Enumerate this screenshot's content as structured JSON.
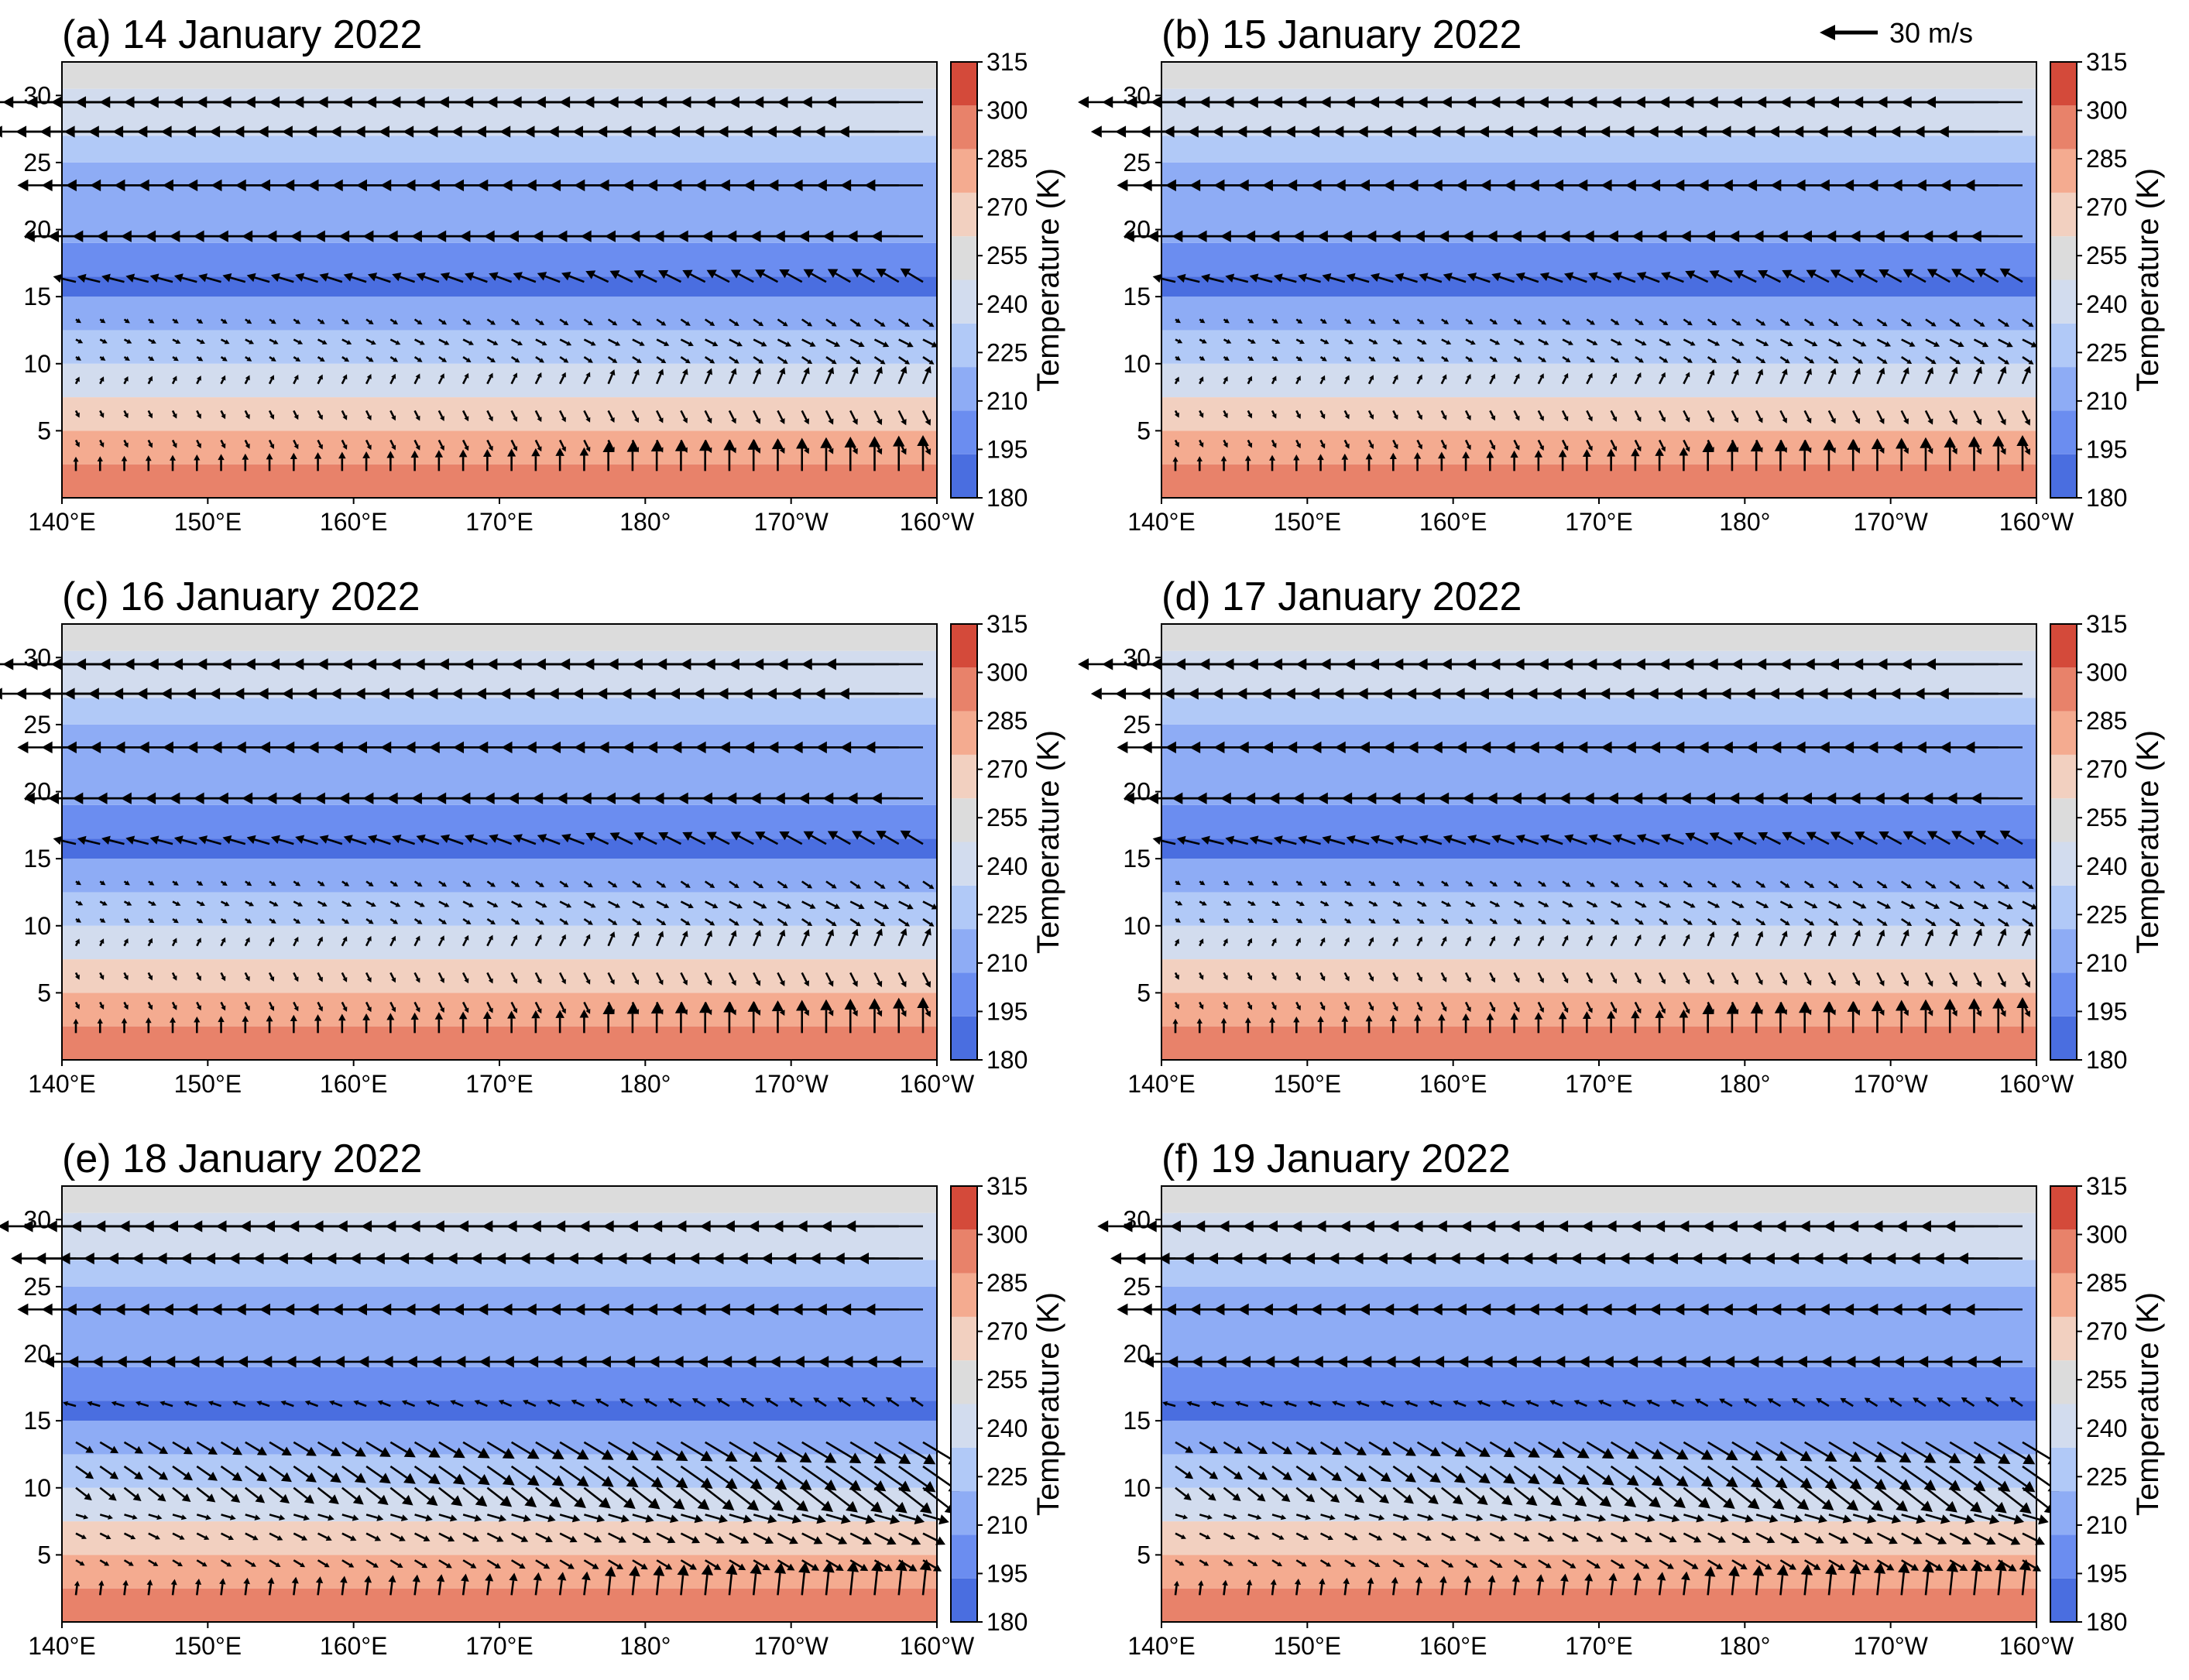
{
  "figure": {
    "reference_vector": {
      "label": "30 m/s",
      "speed": 30,
      "direction": "westward"
    }
  },
  "colors": {
    "levels": [
      180,
      195,
      210,
      225,
      240,
      255,
      270,
      285,
      300,
      315
    ],
    "bands": [
      "#4a6ee0",
      "#6b8df0",
      "#8eacf5",
      "#b1c9f7",
      "#d2dcee",
      "#dcdcdc",
      "#f2d0c0",
      "#f4ab90",
      "#e8826a",
      "#d44a3a"
    ],
    "arrow": "#000000",
    "frame": "#000000"
  },
  "chart_data": [
    {
      "type": "contourf+quiver",
      "title": "(a) 14 January 2022",
      "x_ticks": [
        "140°E",
        "150°E",
        "160°E",
        "170°E",
        "180°",
        "170°W",
        "160°W"
      ],
      "y_ticks": [
        "5",
        "10",
        "15",
        "20",
        "25",
        "30"
      ],
      "xlim": [
        "140°E",
        "160°W"
      ],
      "ylim": [
        0,
        32.5
      ],
      "colorbar": {
        "label": "Temperature (K)",
        "ticks": [
          "315",
          "300",
          "285",
          "270",
          "255",
          "240",
          "225",
          "210",
          "195",
          "180"
        ],
        "range": [
          180,
          315
        ]
      },
      "temperature_K": [
        {
          "z_range": [
            0,
            2.5
          ],
          "T": 300
        },
        {
          "z_range": [
            2.5,
            5
          ],
          "T": 288
        },
        {
          "z_range": [
            5,
            7.5
          ],
          "T": 275
        },
        {
          "z_range": [
            7.5,
            10
          ],
          "T": 248
        },
        {
          "z_range": [
            10,
            12.5
          ],
          "T": 232
        },
        {
          "z_range": [
            12.5,
            15
          ],
          "T": 218
        },
        {
          "z_range": [
            15,
            16.5
          ],
          "T": 190
        },
        {
          "z_range": [
            16.5,
            19
          ],
          "T": 205
        },
        {
          "z_range": [
            19,
            25
          ],
          "T": 215
        },
        {
          "z_range": [
            25,
            27
          ],
          "T": 230
        },
        {
          "z_range": [
            27,
            30.5
          ],
          "T": 248
        },
        {
          "z_range": [
            30.5,
            32.5
          ],
          "T": 265
        }
      ],
      "wind_rows_km": [
        {
          "z": 29.5,
          "u": -30,
          "w": 0
        },
        {
          "z": 27.3,
          "u": -26,
          "w": 0
        },
        {
          "z": 23.3,
          "u": -18,
          "w": 0
        },
        {
          "z": 19.5,
          "u": -16,
          "w": 0
        },
        {
          "z": 16.1,
          "u": -7,
          "w": 3
        },
        {
          "z": 13.3,
          "u": 3,
          "w": -2
        },
        {
          "z": 11.8,
          "u": 4,
          "w": -2
        },
        {
          "z": 10.5,
          "u": 3,
          "w": -2
        },
        {
          "z": 8.5,
          "u": 2,
          "w": 4
        },
        {
          "z": 6.5,
          "u": 2,
          "w": -4
        },
        {
          "z": 4.3,
          "u": 2,
          "w": -4
        },
        {
          "z": 2.0,
          "u": 0,
          "w": 8
        }
      ]
    },
    {
      "type": "contourf+quiver",
      "title": "(b) 15 January 2022",
      "x_ticks": [
        "140°E",
        "150°E",
        "160°E",
        "170°E",
        "180°",
        "170°W",
        "160°W"
      ],
      "y_ticks": [
        "5",
        "10",
        "15",
        "20",
        "25",
        "30"
      ],
      "xlim": [
        "140°E",
        "160°W"
      ],
      "ylim": [
        0,
        32.5
      ],
      "colorbar": {
        "label": "Temperature (K)",
        "ticks": [
          "315",
          "300",
          "285",
          "270",
          "255",
          "240",
          "225",
          "210",
          "195",
          "180"
        ],
        "range": [
          180,
          315
        ]
      },
      "temperature_K": [
        {
          "z_range": [
            0,
            2.5
          ],
          "T": 300
        },
        {
          "z_range": [
            2.5,
            5
          ],
          "T": 288
        },
        {
          "z_range": [
            5,
            7.5
          ],
          "T": 275
        },
        {
          "z_range": [
            7.5,
            10
          ],
          "T": 248
        },
        {
          "z_range": [
            10,
            12.5
          ],
          "T": 232
        },
        {
          "z_range": [
            12.5,
            15
          ],
          "T": 218
        },
        {
          "z_range": [
            15,
            16.5
          ],
          "T": 190
        },
        {
          "z_range": [
            16.5,
            19
          ],
          "T": 205
        },
        {
          "z_range": [
            19,
            25
          ],
          "T": 215
        },
        {
          "z_range": [
            25,
            27
          ],
          "T": 230
        },
        {
          "z_range": [
            27,
            30.5
          ],
          "T": 248
        },
        {
          "z_range": [
            30.5,
            32.5
          ],
          "T": 265
        }
      ],
      "wind_rows_km": [
        {
          "z": 29.5,
          "u": -30,
          "w": 0
        },
        {
          "z": 27.3,
          "u": -26,
          "w": 0
        },
        {
          "z": 23.3,
          "u": -18,
          "w": 0
        },
        {
          "z": 19.5,
          "u": -16,
          "w": 0
        },
        {
          "z": 16.1,
          "u": -7,
          "w": 3
        },
        {
          "z": 13.3,
          "u": 3,
          "w": -2
        },
        {
          "z": 11.8,
          "u": 4,
          "w": -2
        },
        {
          "z": 10.5,
          "u": 3,
          "w": -2
        },
        {
          "z": 8.5,
          "u": 2,
          "w": 4
        },
        {
          "z": 6.5,
          "u": 2,
          "w": -4
        },
        {
          "z": 4.3,
          "u": 2,
          "w": -4
        },
        {
          "z": 2.0,
          "u": 0,
          "w": 8
        }
      ]
    },
    {
      "type": "contourf+quiver",
      "title": "(c) 16 January 2022",
      "x_ticks": [
        "140°E",
        "150°E",
        "160°E",
        "170°E",
        "180°",
        "170°W",
        "160°W"
      ],
      "y_ticks": [
        "5",
        "10",
        "15",
        "20",
        "25",
        "30"
      ],
      "xlim": [
        "140°E",
        "160°W"
      ],
      "ylim": [
        0,
        32.5
      ],
      "colorbar": {
        "label": "Temperature (K)",
        "ticks": [
          "315",
          "300",
          "285",
          "270",
          "255",
          "240",
          "225",
          "210",
          "195",
          "180"
        ],
        "range": [
          180,
          315
        ]
      },
      "temperature_K": [
        {
          "z_range": [
            0,
            2.5
          ],
          "T": 300
        },
        {
          "z_range": [
            2.5,
            5
          ],
          "T": 288
        },
        {
          "z_range": [
            5,
            7.5
          ],
          "T": 275
        },
        {
          "z_range": [
            7.5,
            10
          ],
          "T": 248
        },
        {
          "z_range": [
            10,
            12.5
          ],
          "T": 232
        },
        {
          "z_range": [
            12.5,
            15
          ],
          "T": 218
        },
        {
          "z_range": [
            15,
            16.5
          ],
          "T": 190
        },
        {
          "z_range": [
            16.5,
            19
          ],
          "T": 205
        },
        {
          "z_range": [
            19,
            25
          ],
          "T": 215
        },
        {
          "z_range": [
            25,
            27
          ],
          "T": 230
        },
        {
          "z_range": [
            27,
            30.5
          ],
          "T": 248
        },
        {
          "z_range": [
            30.5,
            32.5
          ],
          "T": 265
        }
      ],
      "wind_rows_km": [
        {
          "z": 29.5,
          "u": -30,
          "w": 0
        },
        {
          "z": 27.3,
          "u": -26,
          "w": 0
        },
        {
          "z": 23.3,
          "u": -18,
          "w": 0
        },
        {
          "z": 19.5,
          "u": -16,
          "w": 0
        },
        {
          "z": 16.1,
          "u": -7,
          "w": 3
        },
        {
          "z": 13.3,
          "u": 3,
          "w": -2
        },
        {
          "z": 11.8,
          "u": 4,
          "w": -2
        },
        {
          "z": 10.5,
          "u": 3,
          "w": -2
        },
        {
          "z": 8.5,
          "u": 2,
          "w": 4
        },
        {
          "z": 6.5,
          "u": 2,
          "w": -4
        },
        {
          "z": 4.3,
          "u": 2,
          "w": -4
        },
        {
          "z": 2.0,
          "u": 0,
          "w": 8
        }
      ]
    },
    {
      "type": "contourf+quiver",
      "title": "(d) 17 January 2022",
      "x_ticks": [
        "140°E",
        "150°E",
        "160°E",
        "170°E",
        "180°",
        "170°W",
        "160°W"
      ],
      "y_ticks": [
        "5",
        "10",
        "15",
        "20",
        "25",
        "30"
      ],
      "xlim": [
        "140°E",
        "160°W"
      ],
      "ylim": [
        0,
        32.5
      ],
      "colorbar": {
        "label": "Temperature (K)",
        "ticks": [
          "315",
          "300",
          "285",
          "270",
          "255",
          "240",
          "225",
          "210",
          "195",
          "180"
        ],
        "range": [
          180,
          315
        ]
      },
      "temperature_K": [
        {
          "z_range": [
            0,
            2.5
          ],
          "T": 300
        },
        {
          "z_range": [
            2.5,
            5
          ],
          "T": 288
        },
        {
          "z_range": [
            5,
            7.5
          ],
          "T": 275
        },
        {
          "z_range": [
            7.5,
            10
          ],
          "T": 248
        },
        {
          "z_range": [
            10,
            12.5
          ],
          "T": 232
        },
        {
          "z_range": [
            12.5,
            15
          ],
          "T": 218
        },
        {
          "z_range": [
            15,
            16.5
          ],
          "T": 190
        },
        {
          "z_range": [
            16.5,
            19
          ],
          "T": 205
        },
        {
          "z_range": [
            19,
            25
          ],
          "T": 215
        },
        {
          "z_range": [
            25,
            27
          ],
          "T": 230
        },
        {
          "z_range": [
            27,
            30.5
          ],
          "T": 248
        },
        {
          "z_range": [
            30.5,
            32.5
          ],
          "T": 265
        }
      ],
      "wind_rows_km": [
        {
          "z": 29.5,
          "u": -30,
          "w": 0
        },
        {
          "z": 27.3,
          "u": -26,
          "w": 0
        },
        {
          "z": 23.3,
          "u": -18,
          "w": 0
        },
        {
          "z": 19.5,
          "u": -16,
          "w": 0
        },
        {
          "z": 16.1,
          "u": -7,
          "w": 3
        },
        {
          "z": 13.3,
          "u": 3,
          "w": -2
        },
        {
          "z": 11.8,
          "u": 4,
          "w": -2
        },
        {
          "z": 10.5,
          "u": 3,
          "w": -2
        },
        {
          "z": 8.5,
          "u": 2,
          "w": 4
        },
        {
          "z": 6.5,
          "u": 2,
          "w": -4
        },
        {
          "z": 4.3,
          "u": 2,
          "w": -4
        },
        {
          "z": 2.0,
          "u": 0,
          "w": 8
        }
      ]
    },
    {
      "type": "contourf+quiver",
      "title": "(e) 18 January 2022",
      "x_ticks": [
        "140°E",
        "150°E",
        "160°E",
        "170°E",
        "180°",
        "170°W",
        "160°W"
      ],
      "y_ticks": [
        "5",
        "10",
        "15",
        "20",
        "25",
        "30"
      ],
      "xlim": [
        "140°E",
        "160°W"
      ],
      "ylim": [
        0,
        32.5
      ],
      "colorbar": {
        "label": "Temperature (K)",
        "ticks": [
          "315",
          "300",
          "285",
          "270",
          "255",
          "240",
          "225",
          "210",
          "195",
          "180"
        ],
        "range": [
          180,
          315
        ]
      },
      "temperature_K": [
        {
          "z_range": [
            0,
            2.5
          ],
          "T": 300
        },
        {
          "z_range": [
            2.5,
            5
          ],
          "T": 288
        },
        {
          "z_range": [
            5,
            7.5
          ],
          "T": 275
        },
        {
          "z_range": [
            7.5,
            10
          ],
          "T": 248
        },
        {
          "z_range": [
            10,
            12.5
          ],
          "T": 232
        },
        {
          "z_range": [
            12.5,
            15
          ],
          "T": 218
        },
        {
          "z_range": [
            15,
            16.5
          ],
          "T": 190
        },
        {
          "z_range": [
            16.5,
            19
          ],
          "T": 205
        },
        {
          "z_range": [
            19,
            25
          ],
          "T": 215
        },
        {
          "z_range": [
            25,
            27
          ],
          "T": 230
        },
        {
          "z_range": [
            27,
            30.5
          ],
          "T": 248
        },
        {
          "z_range": [
            30.5,
            32.5
          ],
          "T": 265
        }
      ],
      "wind_rows_km": [
        {
          "z": 29.5,
          "u": -24,
          "w": 0
        },
        {
          "z": 27.1,
          "u": -20,
          "w": 0
        },
        {
          "z": 23.3,
          "u": -18,
          "w": 0
        },
        {
          "z": 19.4,
          "u": -10,
          "w": 0
        },
        {
          "z": 16.1,
          "u": -4,
          "w": 2
        },
        {
          "z": 13.4,
          "u": 10,
          "w": -6
        },
        {
          "z": 11.6,
          "u": 10,
          "w": -7
        },
        {
          "z": 10.0,
          "u": 9,
          "w": -7
        },
        {
          "z": 8.0,
          "u": 7,
          "w": -2
        },
        {
          "z": 6.6,
          "u": 6,
          "w": -3
        },
        {
          "z": 4.6,
          "u": 5,
          "w": -3
        },
        {
          "z": 2.0,
          "u": 1,
          "w": 8
        }
      ]
    },
    {
      "type": "contourf+quiver",
      "title": "(f) 19 January 2022",
      "x_ticks": [
        "140°E",
        "150°E",
        "160°E",
        "170°E",
        "180°",
        "170°W",
        "160°W"
      ],
      "y_ticks": [
        "5",
        "10",
        "15",
        "20",
        "25",
        "30"
      ],
      "xlim": [
        "140°E",
        "160°W"
      ],
      "ylim": [
        0,
        32.5
      ],
      "colorbar": {
        "label": "Temperature (K)",
        "ticks": [
          "315",
          "300",
          "285",
          "270",
          "255",
          "240",
          "225",
          "210",
          "195",
          "180"
        ],
        "range": [
          180,
          315
        ]
      },
      "temperature_K": [
        {
          "z_range": [
            0,
            2.5
          ],
          "T": 300
        },
        {
          "z_range": [
            2.5,
            5
          ],
          "T": 288
        },
        {
          "z_range": [
            5,
            7.5
          ],
          "T": 275
        },
        {
          "z_range": [
            7.5,
            10
          ],
          "T": 248
        },
        {
          "z_range": [
            10,
            12.5
          ],
          "T": 232
        },
        {
          "z_range": [
            12.5,
            15
          ],
          "T": 218
        },
        {
          "z_range": [
            15,
            16.5
          ],
          "T": 190
        },
        {
          "z_range": [
            16.5,
            19
          ],
          "T": 205
        },
        {
          "z_range": [
            19,
            25
          ],
          "T": 215
        },
        {
          "z_range": [
            25,
            27
          ],
          "T": 230
        },
        {
          "z_range": [
            27,
            30.5
          ],
          "T": 248
        },
        {
          "z_range": [
            30.5,
            32.5
          ],
          "T": 265
        }
      ],
      "wind_rows_km": [
        {
          "z": 29.5,
          "u": -24,
          "w": 0
        },
        {
          "z": 27.1,
          "u": -20,
          "w": 0
        },
        {
          "z": 23.3,
          "u": -18,
          "w": 0
        },
        {
          "z": 19.4,
          "u": -10,
          "w": 0
        },
        {
          "z": 16.1,
          "u": -4,
          "w": 2
        },
        {
          "z": 13.4,
          "u": 10,
          "w": -6
        },
        {
          "z": 11.6,
          "u": 10,
          "w": -7
        },
        {
          "z": 10.0,
          "u": 9,
          "w": -7
        },
        {
          "z": 8.0,
          "u": 7,
          "w": -2
        },
        {
          "z": 6.6,
          "u": 6,
          "w": -3
        },
        {
          "z": 4.6,
          "u": 5,
          "w": -3
        },
        {
          "z": 2.0,
          "u": 1,
          "w": 8
        }
      ]
    }
  ]
}
